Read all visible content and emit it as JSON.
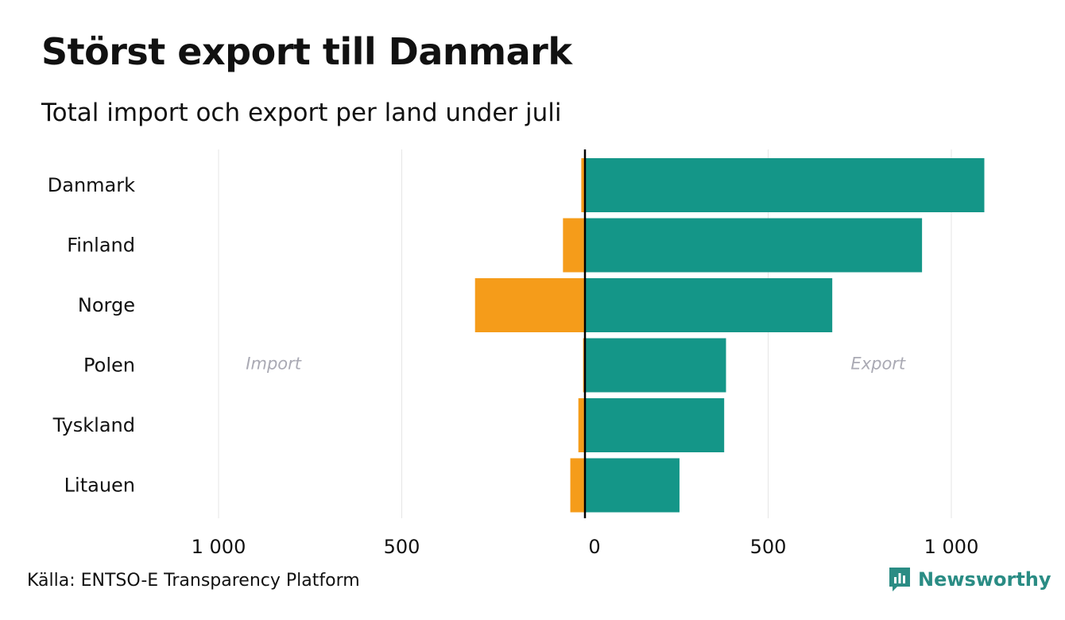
{
  "header": {
    "title": "Störst export till Danmark",
    "subtitle": "Total import och export per land under juli"
  },
  "footer": {
    "source": "Källa: ENTSO-E Transparency Platform",
    "brand": "Newsworthy"
  },
  "colors": {
    "import": "#F59C1A",
    "export": "#149688",
    "grid": "#E6E6E6",
    "zero_line": "#000000",
    "side_label": "#AAAAB4",
    "brand": "#2A8C84"
  },
  "icons": {
    "brand_logo": "newsworthy-logo-icon"
  },
  "chart_data": {
    "type": "bar",
    "orientation": "horizontal-diverging",
    "categories": [
      "Danmark",
      "Finland",
      "Norge",
      "Polen",
      "Tyskland",
      "Litauen"
    ],
    "series": [
      {
        "key": "import",
        "values": [
          10,
          60,
          300,
          5,
          18,
          40
        ]
      },
      {
        "key": "export",
        "values": [
          1090,
          920,
          675,
          385,
          380,
          258
        ]
      }
    ],
    "side_labels": {
      "left": "Import",
      "right": "Export"
    },
    "xlim": [
      -1000,
      1000
    ],
    "x_ticks": [
      -1000,
      -500,
      0,
      500,
      1000
    ],
    "x_tick_labels": [
      "1 000",
      "500",
      "0",
      "500",
      "1 000"
    ],
    "grid": true
  }
}
